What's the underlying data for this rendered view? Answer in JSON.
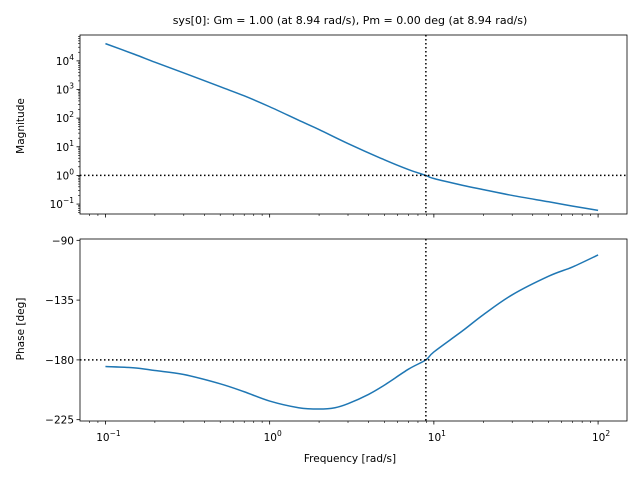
{
  "chart_data": {
    "type": "line",
    "title": "sys[0]: Gm = 1.00 (at 8.94 rad/s), Pm = 0.00 deg (at 8.94 rad/s)",
    "xlabel": "Frequency [rad/s]",
    "x_scale": "log",
    "xlim": [
      0.07,
      150
    ],
    "x_ticks": [
      {
        "value": 0.1,
        "base": "10",
        "exp": "−1"
      },
      {
        "value": 1,
        "base": "10",
        "exp": "0"
      },
      {
        "value": 10,
        "base": "10",
        "exp": "1"
      },
      {
        "value": 100,
        "base": "10",
        "exp": "2"
      }
    ],
    "line_color": "#1f77b4",
    "crossover_frequency": 8.94,
    "magnitude": {
      "ylabel": "Magnitude",
      "y_scale": "log",
      "ylim": [
        0.045,
        80000
      ],
      "y_ticks": [
        {
          "value": 0.1,
          "base": "10",
          "exp": "−1"
        },
        {
          "value": 1,
          "base": "10",
          "exp": "0"
        },
        {
          "value": 10,
          "base": "10",
          "exp": "1"
        },
        {
          "value": 100,
          "base": "10",
          "exp": "2"
        },
        {
          "value": 1000,
          "base": "10",
          "exp": "3"
        },
        {
          "value": 10000,
          "base": "10",
          "exp": "4"
        }
      ],
      "reference_line": 1,
      "x": [
        0.1,
        0.15,
        0.2,
        0.3,
        0.5,
        0.7,
        1,
        1.5,
        2,
        3,
        5,
        7,
        8.94,
        10,
        15,
        20,
        30,
        50,
        70,
        100
      ],
      "y": [
        40000,
        17000,
        9000,
        3800,
        1250,
        600,
        250,
        85,
        40,
        13,
        3.5,
        1.6,
        1.0,
        0.78,
        0.45,
        0.32,
        0.2,
        0.12,
        0.085,
        0.06
      ]
    },
    "phase": {
      "ylabel": "Phase [deg]",
      "y_scale": "linear",
      "ylim": [
        -226,
        -89
      ],
      "y_ticks": [
        {
          "value": -90,
          "label": "−90"
        },
        {
          "value": -135,
          "label": "−135"
        },
        {
          "value": -180,
          "label": "−180"
        },
        {
          "value": -225,
          "label": "−225"
        }
      ],
      "reference_line": -180,
      "x": [
        0.1,
        0.15,
        0.2,
        0.3,
        0.5,
        0.7,
        1,
        1.5,
        2,
        2.5,
        3,
        4,
        5,
        7,
        8.94,
        10,
        15,
        20,
        30,
        50,
        70,
        100
      ],
      "y": [
        -185,
        -186,
        -188,
        -191,
        -198,
        -204,
        -211,
        -216,
        -217,
        -216,
        -213,
        -206,
        -199,
        -187,
        -180,
        -174,
        -158,
        -146,
        -131,
        -117,
        -110,
        -101
      ]
    }
  }
}
